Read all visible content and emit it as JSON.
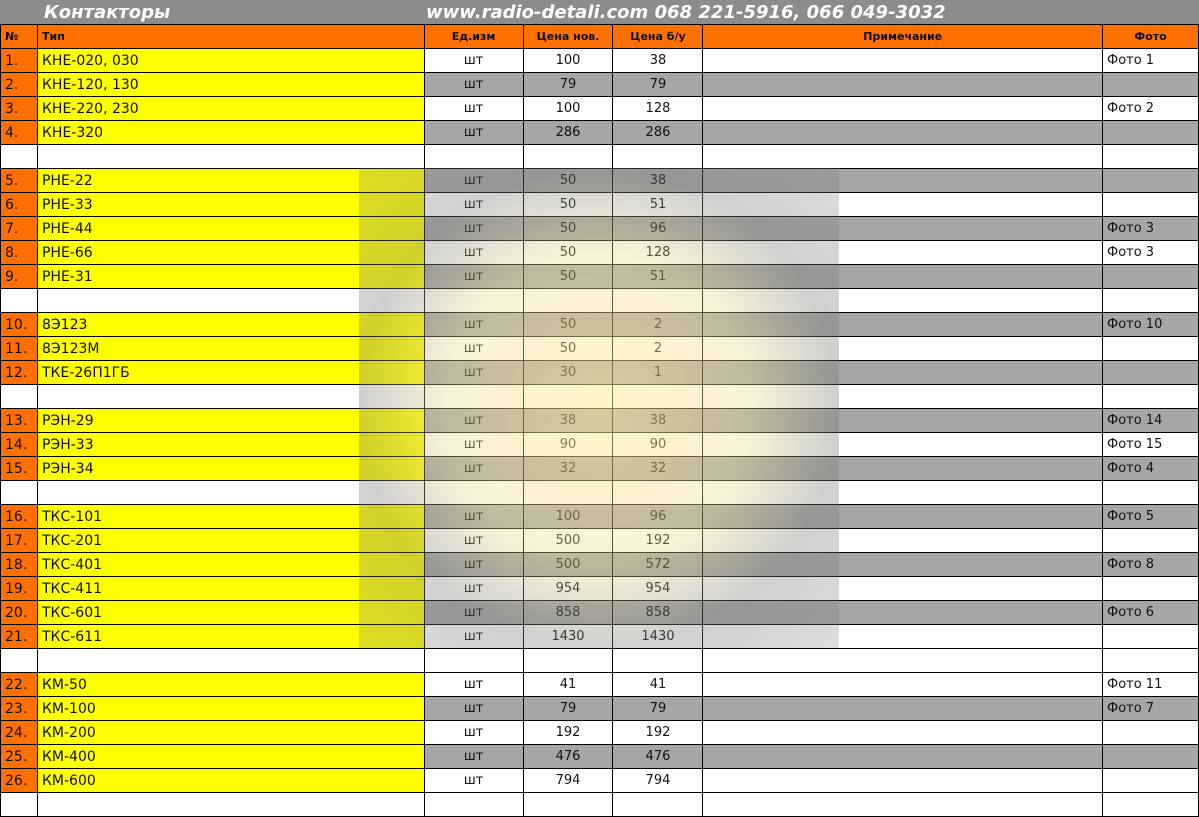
{
  "header": {
    "title": "Контакторы",
    "contacts": "www.radio-detali.com 068 221-5916, 066 049-3032"
  },
  "columns": {
    "num": "№",
    "type": "Тип",
    "unit": "Ед.изм",
    "price_new": "Цена нов.",
    "price_used": "Цена б/у",
    "note": "Примечание",
    "photo": "Фото"
  },
  "rows": [
    {
      "n": "1.",
      "t": "КНЕ-020, 030",
      "u": "шт",
      "p": "100",
      "b": "38",
      "f": "Фото 1",
      "g": false
    },
    {
      "n": "2.",
      "t": "КНЕ-120, 130",
      "u": "шт",
      "p": "79",
      "b": "79",
      "f": "",
      "g": true
    },
    {
      "n": "3.",
      "t": "КНЕ-220, 230",
      "u": "шт",
      "p": "100",
      "b": "128",
      "f": "Фото 2",
      "g": false
    },
    {
      "n": "4.",
      "t": "КНЕ-320",
      "u": "шт",
      "p": "286",
      "b": "286",
      "f": "",
      "g": true
    },
    {
      "blank": true
    },
    {
      "n": "5.",
      "t": "РНЕ-22",
      "u": "шт",
      "p": "50",
      "b": "38",
      "f": "",
      "g": true
    },
    {
      "n": "6.",
      "t": "РНЕ-33",
      "u": "шт",
      "p": "50",
      "b": "51",
      "f": "",
      "g": false
    },
    {
      "n": "7.",
      "t": "РНЕ-44",
      "u": "шт",
      "p": "50",
      "b": "96",
      "f": "Фото 3",
      "g": true
    },
    {
      "n": "8.",
      "t": "РНЕ-66",
      "u": "шт",
      "p": "50",
      "b": "128",
      "f": "Фото 3",
      "g": false
    },
    {
      "n": "9.",
      "t": "РНЕ-31",
      "u": "шт",
      "p": "50",
      "b": "51",
      "f": "",
      "g": true
    },
    {
      "blank": true
    },
    {
      "n": "10.",
      "t": "8Э123",
      "u": "шт",
      "p": "50",
      "b": "2",
      "f": "Фото 10",
      "g": true
    },
    {
      "n": "11.",
      "t": "8Э123М",
      "u": "шт",
      "p": "50",
      "b": "2",
      "f": "",
      "g": false
    },
    {
      "n": "12.",
      "t": "ТКЕ-26П1ГБ",
      "u": "шт",
      "p": "30",
      "b": "1",
      "f": "",
      "g": true
    },
    {
      "blank": true
    },
    {
      "n": "13.",
      "t": "РЭН-29",
      "u": "шт",
      "p": "38",
      "b": "38",
      "f": "Фото 14",
      "g": true
    },
    {
      "n": "14.",
      "t": "РЭН-33",
      "u": "шт",
      "p": "90",
      "b": "90",
      "f": "Фото 15",
      "g": false
    },
    {
      "n": "15.",
      "t": "РЭН-34",
      "u": "шт",
      "p": "32",
      "b": "32",
      "f": "Фото 4",
      "g": true
    },
    {
      "blank": true
    },
    {
      "n": "16.",
      "t": "ТКС-101",
      "u": "шт",
      "p": "100",
      "b": "96",
      "f": "Фото 5",
      "g": true
    },
    {
      "n": "17.",
      "t": "ТКС-201",
      "u": "шт",
      "p": "500",
      "b": "192",
      "f": "",
      "g": false
    },
    {
      "n": "18.",
      "t": "ТКС-401",
      "u": "шт",
      "p": "500",
      "b": "572",
      "f": "Фото 8",
      "g": true
    },
    {
      "n": "19.",
      "t": "ТКС-411",
      "u": "шт",
      "p": "954",
      "b": "954",
      "f": "",
      "g": false
    },
    {
      "n": "20.",
      "t": "ТКС-601",
      "u": "шт",
      "p": "858",
      "b": "858",
      "f": "Фото 6",
      "g": true
    },
    {
      "n": "21.",
      "t": "ТКС-611",
      "u": "шт",
      "p": "1430",
      "b": "1430",
      "f": "",
      "g": false
    },
    {
      "blank": true
    },
    {
      "n": "22.",
      "t": "КМ-50",
      "u": "шт",
      "p": "41",
      "b": "41",
      "f": "Фото 11",
      "g": false
    },
    {
      "n": "23.",
      "t": "КМ-100",
      "u": "шт",
      "p": "79",
      "b": "79",
      "f": "Фото 7",
      "g": true
    },
    {
      "n": "24.",
      "t": "КМ-200",
      "u": "шт",
      "p": "192",
      "b": "192",
      "f": "",
      "g": false
    },
    {
      "n": "25.",
      "t": "КМ-400",
      "u": "шт",
      "p": "476",
      "b": "476",
      "f": "",
      "g": true
    },
    {
      "n": "26.",
      "t": "КМ-600",
      "u": "шт",
      "p": "794",
      "b": "794",
      "f": "",
      "g": false
    },
    {
      "blank": true
    }
  ]
}
